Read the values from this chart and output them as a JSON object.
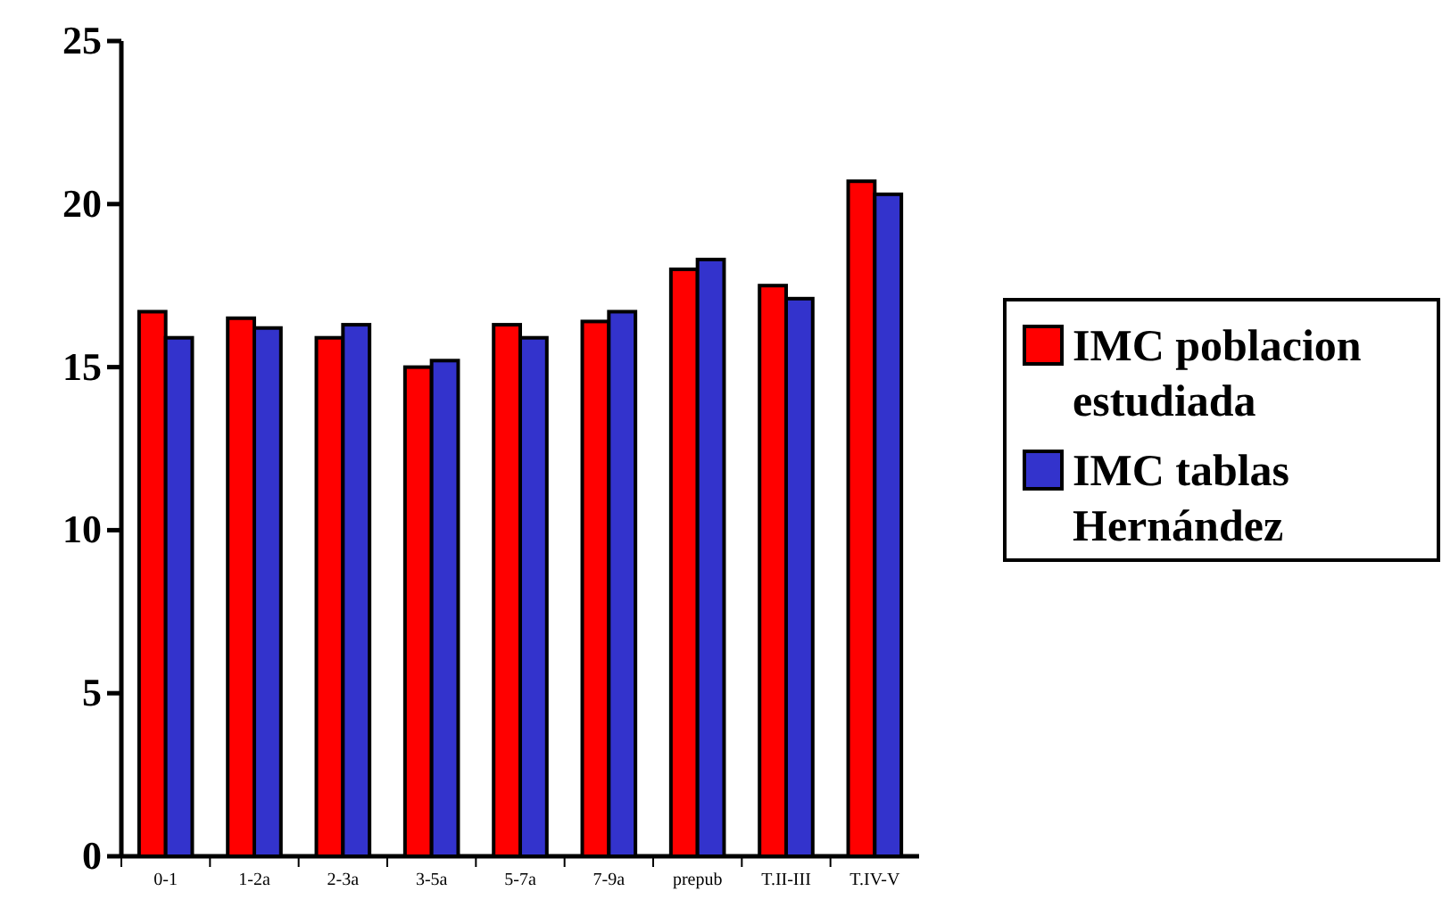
{
  "chart_data": {
    "type": "bar",
    "categories": [
      "0-1",
      "1-2a",
      "2-3a",
      "3-5a",
      "5-7a",
      "7-9a",
      "prepub",
      "T.II-III",
      "T.IV-V"
    ],
    "series": [
      {
        "name": "IMC poblacion estudiada",
        "color": "#ff0000",
        "values": [
          16.7,
          16.5,
          15.9,
          15.0,
          16.3,
          16.4,
          18.0,
          17.5,
          20.7
        ]
      },
      {
        "name": "IMC tablas Hernández",
        "color": "#3333cc",
        "values": [
          15.9,
          16.2,
          16.3,
          15.2,
          15.9,
          16.7,
          18.3,
          17.1,
          20.3
        ]
      }
    ],
    "ylim": [
      0,
      25
    ],
    "yticks": [
      0,
      5,
      10,
      15,
      20,
      25
    ],
    "grid": false,
    "legend": "right"
  }
}
